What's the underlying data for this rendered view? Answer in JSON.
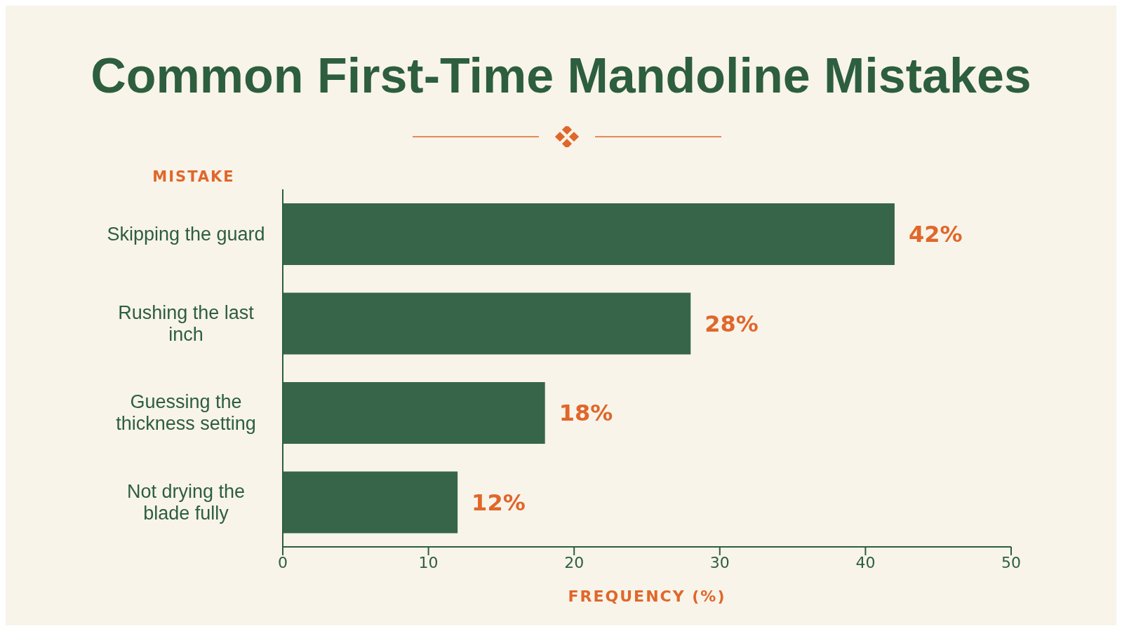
{
  "chart_data": {
    "type": "bar",
    "orientation": "horizontal",
    "title": "Common First-Time Mandoline Mistakes",
    "ylabel": "MISTAKE",
    "xlabel": "FREQUENCY (%)",
    "categories": [
      "Skipping the guard",
      "Rushing the last inch",
      "Guessing the thickness setting",
      "Not drying the blade fully"
    ],
    "values": [
      42,
      28,
      18,
      12
    ],
    "value_labels": [
      "42%",
      "28%",
      "18%",
      "12%"
    ],
    "color": "#36654a",
    "xlim": [
      0,
      50
    ],
    "xticks": [
      0,
      10,
      20,
      30,
      40,
      50
    ],
    "grid": false,
    "legend": false
  }
}
